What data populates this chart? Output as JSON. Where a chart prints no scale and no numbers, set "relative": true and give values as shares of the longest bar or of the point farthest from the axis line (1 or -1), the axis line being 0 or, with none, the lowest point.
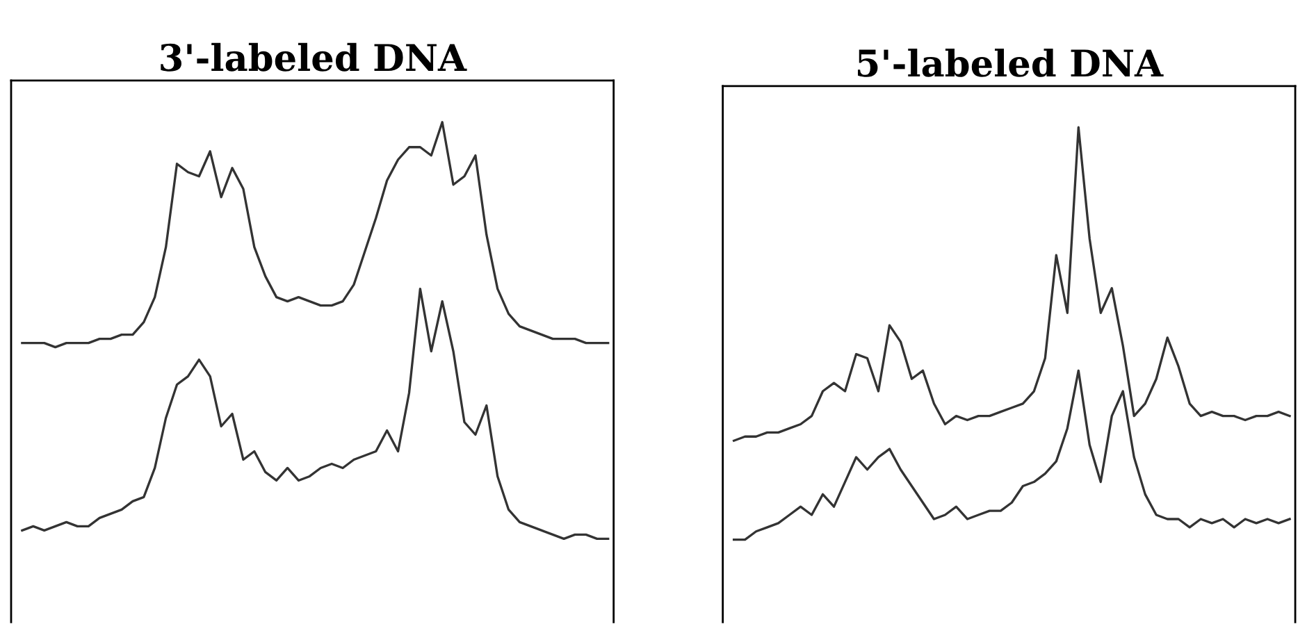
{
  "chart_data": [
    {
      "type": "line",
      "title": "3'-labeled DNA",
      "relative": true,
      "categories": [
        null,
        null,
        null,
        null,
        null,
        null,
        null,
        null,
        null,
        null,
        null,
        null,
        null,
        null,
        null,
        null,
        null,
        null,
        null,
        null,
        null,
        null,
        null,
        null,
        null,
        null,
        null,
        null,
        null,
        null,
        null,
        null,
        null,
        null,
        null,
        null,
        null,
        null,
        null,
        null,
        null,
        null,
        null,
        null,
        null,
        null,
        null,
        null,
        null,
        null,
        null,
        null,
        null,
        null
      ],
      "series": [
        {
          "color": "#333333",
          "values": [
            0.47,
            0.47,
            0.47,
            0.46,
            0.47,
            0.47,
            0.47,
            0.48,
            0.48,
            0.49,
            0.49,
            0.52,
            0.58,
            0.7,
            0.9,
            0.88,
            0.87,
            0.93,
            0.82,
            0.89,
            0.84,
            0.7,
            0.63,
            0.58,
            0.57,
            0.58,
            0.57,
            0.56,
            0.56,
            0.57,
            0.61,
            0.69,
            0.77,
            0.86,
            0.91,
            0.94,
            0.94,
            0.92,
            1.0,
            0.85,
            0.87,
            0.92,
            0.73,
            0.6,
            0.54,
            0.51,
            0.5,
            0.49,
            0.48,
            0.48,
            0.48,
            0.47,
            0.47,
            0.47
          ]
        },
        {
          "color": "#333333",
          "values": [
            0.02,
            0.03,
            0.02,
            0.03,
            0.04,
            0.03,
            0.03,
            0.05,
            0.06,
            0.07,
            0.09,
            0.1,
            0.17,
            0.29,
            0.37,
            0.39,
            0.43,
            0.39,
            0.27,
            0.3,
            0.19,
            0.21,
            0.16,
            0.14,
            0.17,
            0.14,
            0.15,
            0.17,
            0.18,
            0.17,
            0.19,
            0.2,
            0.21,
            0.26,
            0.21,
            0.35,
            0.6,
            0.45,
            0.57,
            0.45,
            0.28,
            0.25,
            0.32,
            0.15,
            0.07,
            0.04,
            0.03,
            0.02,
            0.01,
            0.0,
            0.01,
            0.01,
            0.0,
            0.0
          ]
        }
      ]
    },
    {
      "type": "line",
      "title": "5'-labeled DNA",
      "relative": true,
      "categories": [
        null,
        null,
        null,
        null,
        null,
        null,
        null,
        null,
        null,
        null,
        null,
        null,
        null,
        null,
        null,
        null,
        null,
        null,
        null,
        null,
        null,
        null,
        null,
        null,
        null,
        null,
        null,
        null,
        null,
        null,
        null,
        null,
        null,
        null,
        null,
        null,
        null,
        null,
        null,
        null,
        null,
        null,
        null,
        null,
        null,
        null,
        null,
        null,
        null,
        null,
        null
      ],
      "series": [
        {
          "color": "#333333",
          "values": [
            0.24,
            0.25,
            0.25,
            0.26,
            0.26,
            0.27,
            0.28,
            0.3,
            0.36,
            0.38,
            0.36,
            0.45,
            0.44,
            0.36,
            0.52,
            0.48,
            0.39,
            0.41,
            0.33,
            0.28,
            0.3,
            0.29,
            0.3,
            0.3,
            0.31,
            0.32,
            0.33,
            0.36,
            0.44,
            0.69,
            0.55,
            1.0,
            0.73,
            0.55,
            0.61,
            0.47,
            0.3,
            0.33,
            0.39,
            0.49,
            0.42,
            0.33,
            0.3,
            0.31,
            0.3,
            0.3,
            0.29,
            0.3,
            0.3,
            0.31,
            0.3
          ]
        },
        {
          "color": "#333333",
          "values": [
            0.0,
            0.0,
            0.02,
            0.03,
            0.04,
            0.06,
            0.08,
            0.06,
            0.11,
            0.08,
            0.14,
            0.2,
            0.17,
            0.2,
            0.22,
            0.17,
            0.13,
            0.09,
            0.05,
            0.06,
            0.08,
            0.05,
            0.06,
            0.07,
            0.07,
            0.09,
            0.13,
            0.14,
            0.16,
            0.19,
            0.27,
            0.41,
            0.23,
            0.14,
            0.3,
            0.36,
            0.2,
            0.11,
            0.06,
            0.05,
            0.05,
            0.03,
            0.05,
            0.04,
            0.05,
            0.03,
            0.05,
            0.04,
            0.05,
            0.04,
            0.05
          ]
        }
      ]
    }
  ]
}
